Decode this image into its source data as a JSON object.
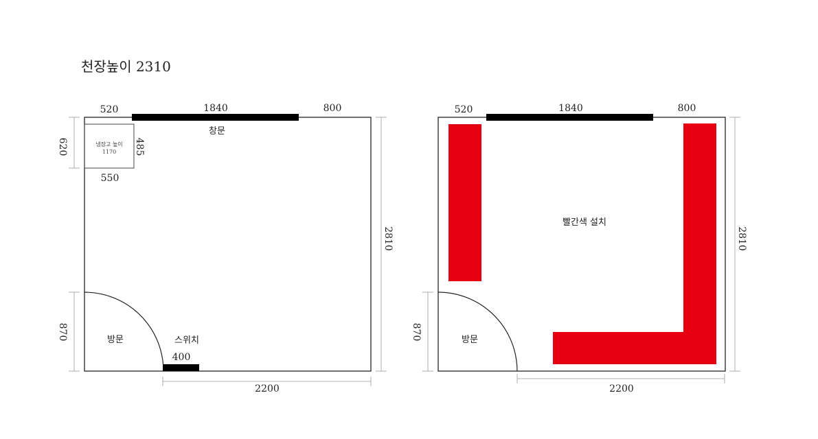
{
  "title": "천장높이 2310",
  "colors": {
    "wall": "#222222",
    "window": "#000000",
    "install": "#e60012",
    "dimension_line": "#999999"
  },
  "left_plan": {
    "top_dims": [
      "520",
      "1840",
      "800"
    ],
    "window_label": "창문",
    "fridge": {
      "label_line1": "냉장고 높이",
      "label_line2": "1170",
      "depth": "620",
      "side": "485",
      "width": "550"
    },
    "door_label": "방문",
    "door_dim": "870",
    "switch_label": "스위치",
    "switch_dim": "400",
    "right_dim": "2810",
    "bottom_dim": "2200"
  },
  "right_plan": {
    "top_dims": [
      "520",
      "1840",
      "800"
    ],
    "install_label": "빨간색 설치",
    "door_label": "방문",
    "door_dim": "870",
    "right_dim": "2810",
    "bottom_dim": "2200"
  }
}
